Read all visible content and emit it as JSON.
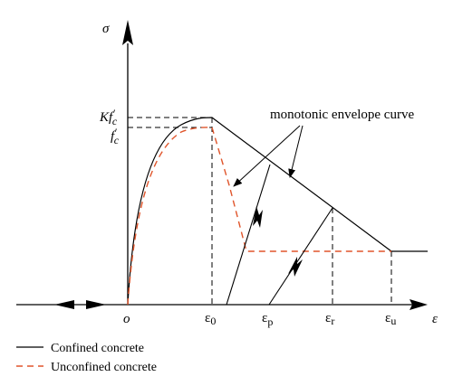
{
  "axes": {
    "y_symbol": "σ",
    "x_symbol": "ε",
    "origin": "o"
  },
  "stress_labels": {
    "confined_peak": {
      "base": "Kf",
      "prime": "′",
      "sub": "c"
    },
    "unconfined_peak": {
      "base": "f",
      "prime": "′",
      "sub": "c"
    }
  },
  "strain_labels": [
    {
      "base": "ε",
      "sub": "0"
    },
    {
      "base": "ε",
      "sub": "p"
    },
    {
      "base": "ε",
      "sub": "r"
    },
    {
      "base": "ε",
      "sub": "u"
    }
  ],
  "annotation": "monotonic envelope curve",
  "legend": [
    {
      "label": "Confined concrete",
      "style": "solid",
      "color": "#000000"
    },
    {
      "label": "Unconfined concrete",
      "style": "dashed",
      "color": "#e0552b"
    }
  ],
  "colors": {
    "confined": "#000000",
    "unconfined": "#e0552b"
  }
}
